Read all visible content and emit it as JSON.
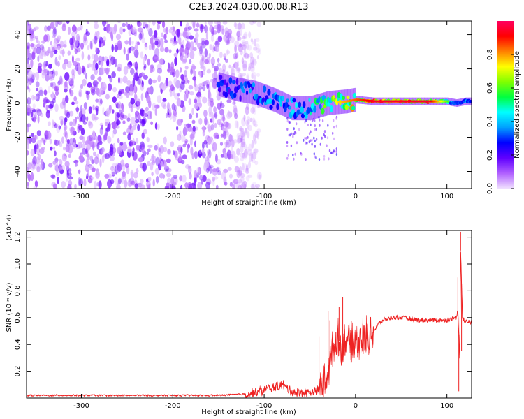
{
  "title": "C2E3.2024.030.00.08.R13",
  "chart_data": [
    {
      "type": "heatmap",
      "xlabel": "Height of straight line (km)",
      "ylabel": "Frequency (Hz)",
      "xlim": [
        -360,
        127
      ],
      "ylim": [
        -50,
        48
      ],
      "xticks": [
        -300,
        -200,
        -100,
        0,
        100
      ],
      "yticks": [
        -40,
        -20,
        0,
        20,
        40
      ],
      "colorbar": {
        "label": "Normalized spectral amplitude",
        "range": [
          0.0,
          1.0
        ],
        "ticks": [
          0.0,
          0.2,
          0.4,
          0.6,
          0.8
        ],
        "colormap": [
          "#f0e0ff",
          "#b060ff",
          "#6000ff",
          "#0000ff",
          "#00a0ff",
          "#00ffff",
          "#00ff40",
          "#80ff00",
          "#ffff00",
          "#ff8000",
          "#ff0000",
          "#ff0060"
        ]
      },
      "ridge": {
        "x": [
          -150,
          -130,
          -110,
          -90,
          -70,
          -50,
          -30,
          -10,
          0,
          20,
          40,
          60,
          80,
          100,
          110,
          120,
          127
        ],
        "y": [
          11,
          8,
          6,
          2,
          -3,
          -3,
          0,
          1,
          2,
          1,
          1,
          1,
          1,
          1,
          0,
          1,
          1
        ],
        "amplitude": [
          0.3,
          0.35,
          0.4,
          0.45,
          0.45,
          0.5,
          0.7,
          0.8,
          0.85,
          0.95,
          0.95,
          0.95,
          0.95,
          0.6,
          0.35,
          0.4,
          0.4
        ]
      },
      "noise_extent_x": [
        -360,
        -120
      ]
    },
    {
      "type": "line",
      "xlabel": "Height of straight line (km)",
      "ylabel": "SNR (10 * v/v)",
      "exponent": "(x10^4)",
      "xlim": [
        -360,
        127
      ],
      "ylim": [
        0,
        1.25
      ],
      "xticks": [
        -300,
        -200,
        -100,
        0,
        100
      ],
      "yticks": [
        0.2,
        0.4,
        0.6,
        0.8,
        1.0,
        1.2
      ],
      "color": "#ee2222",
      "series": [
        {
          "x": [
            -360,
            -300,
            -250,
            -200,
            -150,
            -120,
            -110,
            -100,
            -90,
            -80,
            -70,
            -60,
            -50,
            -40,
            -35,
            -30,
            -25,
            -20,
            -15,
            -10,
            -5,
            0,
            10,
            20,
            25,
            30,
            40,
            50,
            60,
            70,
            80,
            90,
            100,
            105,
            110,
            112,
            114,
            115,
            117,
            120,
            127
          ],
          "y": [
            0.02,
            0.02,
            0.02,
            0.02,
            0.02,
            0.03,
            0.04,
            0.06,
            0.08,
            0.1,
            0.05,
            0.04,
            0.04,
            0.06,
            0.12,
            0.2,
            0.35,
            0.45,
            0.38,
            0.45,
            0.4,
            0.42,
            0.45,
            0.5,
            0.55,
            0.58,
            0.6,
            0.6,
            0.59,
            0.58,
            0.58,
            0.58,
            0.58,
            0.59,
            0.6,
            0.65,
            0.3,
            1.1,
            0.6,
            0.57,
            0.57
          ],
          "spikes": [
            {
              "x": -40,
              "y": 0.46
            },
            {
              "x": -30,
              "y": 0.65
            },
            {
              "x": -28,
              "y": 0.58
            },
            {
              "x": -18,
              "y": 0.68
            },
            {
              "x": -14,
              "y": 0.75
            },
            {
              "x": -12,
              "y": 0.5
            },
            {
              "x": 112,
              "y": 0.9
            },
            {
              "x": 113,
              "y": 0.05
            },
            {
              "x": 115,
              "y": 1.24
            },
            {
              "x": 116,
              "y": 0.35
            }
          ]
        }
      ]
    }
  ]
}
